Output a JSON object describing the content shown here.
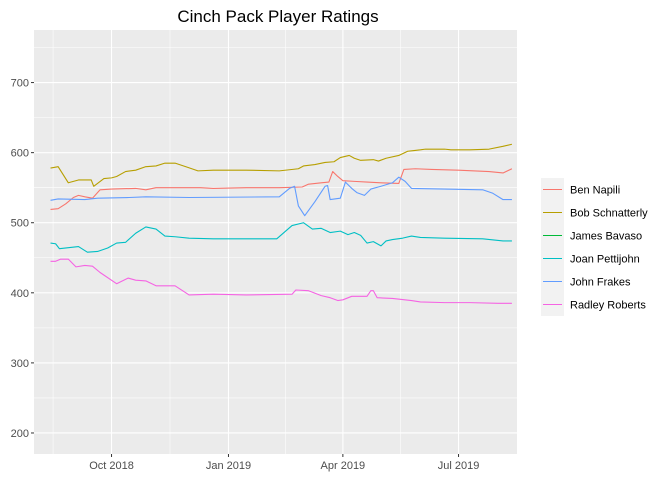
{
  "chart_data": {
    "type": "line",
    "title": "Cinch Pack Player Ratings",
    "xlabel": "",
    "ylabel": "",
    "x_domain": [
      "2018-08-01",
      "2019-08-16"
    ],
    "ylim": [
      170,
      775
    ],
    "x_ticks": [
      {
        "date": "2018-10-01",
        "label": "Oct 2018"
      },
      {
        "date": "2019-01-01",
        "label": "Jan 2019"
      },
      {
        "date": "2019-04-01",
        "label": "Apr 2019"
      },
      {
        "date": "2019-07-01",
        "label": "Jul 2019"
      }
    ],
    "y_ticks": [
      200,
      300,
      400,
      500,
      600,
      700
    ],
    "grid": true,
    "background": "#ebebeb",
    "legend_position": "right",
    "series": [
      {
        "name": "Ben Napili",
        "color": "#F8766D",
        "points": [
          [
            "2018-08-14",
            519
          ],
          [
            "2018-08-20",
            520
          ],
          [
            "2018-08-26",
            527
          ],
          [
            "2018-09-01",
            536
          ],
          [
            "2018-09-05",
            539
          ],
          [
            "2018-09-10",
            537
          ],
          [
            "2018-09-16",
            535
          ],
          [
            "2018-09-22",
            547
          ],
          [
            "2018-10-01",
            548
          ],
          [
            "2018-10-20",
            549
          ],
          [
            "2018-10-28",
            547
          ],
          [
            "2018-11-05",
            550
          ],
          [
            "2018-11-20",
            550
          ],
          [
            "2018-12-10",
            550
          ],
          [
            "2018-12-20",
            549
          ],
          [
            "2019-01-15",
            550
          ],
          [
            "2019-02-10",
            550
          ],
          [
            "2019-02-28",
            551
          ],
          [
            "2019-03-05",
            555
          ],
          [
            "2019-03-15",
            557
          ],
          [
            "2019-03-21",
            558
          ],
          [
            "2019-03-24",
            573
          ],
          [
            "2019-03-28",
            566
          ],
          [
            "2019-04-01",
            560
          ],
          [
            "2019-04-10",
            559
          ],
          [
            "2019-04-20",
            558
          ],
          [
            "2019-05-01",
            557
          ],
          [
            "2019-05-15",
            556
          ],
          [
            "2019-05-19",
            576
          ],
          [
            "2019-05-28",
            577
          ],
          [
            "2019-06-10",
            576
          ],
          [
            "2019-07-01",
            575
          ],
          [
            "2019-07-25",
            573
          ],
          [
            "2019-08-05",
            571
          ],
          [
            "2019-08-12",
            577
          ]
        ]
      },
      {
        "name": "Bob Schnatterly",
        "color": "#B79F00",
        "points": [
          [
            "2018-08-14",
            578
          ],
          [
            "2018-08-20",
            580
          ],
          [
            "2018-08-28",
            557
          ],
          [
            "2018-09-05",
            561
          ],
          [
            "2018-09-15",
            561
          ],
          [
            "2018-09-17",
            552
          ],
          [
            "2018-09-25",
            563
          ],
          [
            "2018-10-01",
            564
          ],
          [
            "2018-10-05",
            566
          ],
          [
            "2018-10-12",
            573
          ],
          [
            "2018-10-20",
            575
          ],
          [
            "2018-10-28",
            580
          ],
          [
            "2018-11-05",
            581
          ],
          [
            "2018-11-12",
            585
          ],
          [
            "2018-11-20",
            585
          ],
          [
            "2018-11-30",
            579
          ],
          [
            "2018-12-08",
            574
          ],
          [
            "2018-12-20",
            575
          ],
          [
            "2019-01-15",
            575
          ],
          [
            "2019-02-10",
            574
          ],
          [
            "2019-02-25",
            577
          ],
          [
            "2019-03-01",
            581
          ],
          [
            "2019-03-10",
            583
          ],
          [
            "2019-03-18",
            586
          ],
          [
            "2019-03-25",
            587
          ],
          [
            "2019-03-30",
            593
          ],
          [
            "2019-04-06",
            596
          ],
          [
            "2019-04-10",
            592
          ],
          [
            "2019-04-15",
            589
          ],
          [
            "2019-04-25",
            590
          ],
          [
            "2019-04-29",
            588
          ],
          [
            "2019-05-05",
            592
          ],
          [
            "2019-05-15",
            596
          ],
          [
            "2019-05-22",
            602
          ],
          [
            "2019-05-27",
            603
          ],
          [
            "2019-06-01",
            604
          ],
          [
            "2019-06-05",
            605
          ],
          [
            "2019-06-20",
            605
          ],
          [
            "2019-06-25",
            604
          ],
          [
            "2019-07-10",
            604
          ],
          [
            "2019-07-25",
            605
          ],
          [
            "2019-08-05",
            609
          ],
          [
            "2019-08-12",
            612
          ]
        ]
      },
      {
        "name": "James Bavaso",
        "color": "#00BA38",
        "points": []
      },
      {
        "name": "Joan Pettijohn",
        "color": "#00BFC4",
        "points": [
          [
            "2018-08-14",
            471
          ],
          [
            "2018-08-18",
            470
          ],
          [
            "2018-08-21",
            463
          ],
          [
            "2018-09-05",
            466
          ],
          [
            "2018-09-12",
            458
          ],
          [
            "2018-09-20",
            459
          ],
          [
            "2018-09-28",
            464
          ],
          [
            "2018-10-05",
            471
          ],
          [
            "2018-10-12",
            472
          ],
          [
            "2018-10-20",
            485
          ],
          [
            "2018-10-28",
            494
          ],
          [
            "2018-11-05",
            491
          ],
          [
            "2018-11-12",
            481
          ],
          [
            "2018-11-20",
            480
          ],
          [
            "2018-12-01",
            478
          ],
          [
            "2018-12-20",
            477
          ],
          [
            "2019-02-08",
            477
          ],
          [
            "2019-02-20",
            496
          ],
          [
            "2019-03-01",
            500
          ],
          [
            "2019-03-08",
            491
          ],
          [
            "2019-03-15",
            492
          ],
          [
            "2019-03-22",
            486
          ],
          [
            "2019-03-30",
            488
          ],
          [
            "2019-04-05",
            483
          ],
          [
            "2019-04-10",
            486
          ],
          [
            "2019-04-15",
            482
          ],
          [
            "2019-04-20",
            471
          ],
          [
            "2019-04-25",
            473
          ],
          [
            "2019-05-01",
            467
          ],
          [
            "2019-05-05",
            474
          ],
          [
            "2019-05-10",
            476
          ],
          [
            "2019-05-18",
            478
          ],
          [
            "2019-05-25",
            481
          ],
          [
            "2019-06-01",
            479
          ],
          [
            "2019-06-20",
            478
          ],
          [
            "2019-07-20",
            477
          ],
          [
            "2019-08-05",
            474
          ],
          [
            "2019-08-12",
            474
          ]
        ]
      },
      {
        "name": "John Frakes",
        "color": "#619CFF",
        "points": [
          [
            "2018-08-14",
            532
          ],
          [
            "2018-08-20",
            534
          ],
          [
            "2018-09-10",
            533
          ],
          [
            "2018-09-20",
            535
          ],
          [
            "2018-10-15",
            536
          ],
          [
            "2018-10-28",
            537
          ],
          [
            "2018-12-01",
            536
          ],
          [
            "2019-02-10",
            537
          ],
          [
            "2019-02-18",
            549
          ],
          [
            "2019-02-22",
            552
          ],
          [
            "2019-02-25",
            524
          ],
          [
            "2019-03-02",
            510
          ],
          [
            "2019-03-10",
            530
          ],
          [
            "2019-03-18",
            552
          ],
          [
            "2019-03-20",
            553
          ],
          [
            "2019-03-22",
            533
          ],
          [
            "2019-03-30",
            535
          ],
          [
            "2019-04-03",
            558
          ],
          [
            "2019-04-08",
            549
          ],
          [
            "2019-04-12",
            543
          ],
          [
            "2019-04-18",
            539
          ],
          [
            "2019-04-23",
            548
          ],
          [
            "2019-05-01",
            552
          ],
          [
            "2019-05-10",
            557
          ],
          [
            "2019-05-15",
            565
          ],
          [
            "2019-05-20",
            559
          ],
          [
            "2019-05-25",
            549
          ],
          [
            "2019-06-20",
            548
          ],
          [
            "2019-07-20",
            547
          ],
          [
            "2019-07-28",
            542
          ],
          [
            "2019-08-05",
            533
          ],
          [
            "2019-08-12",
            533
          ]
        ]
      },
      {
        "name": "Radley Roberts",
        "color": "#F564E3",
        "points": [
          [
            "2018-08-14",
            445
          ],
          [
            "2018-08-18",
            445
          ],
          [
            "2018-08-22",
            448
          ],
          [
            "2018-08-28",
            448
          ],
          [
            "2018-09-03",
            437
          ],
          [
            "2018-09-10",
            439
          ],
          [
            "2018-09-16",
            438
          ],
          [
            "2018-09-22",
            429
          ],
          [
            "2018-10-05",
            413
          ],
          [
            "2018-10-14",
            421
          ],
          [
            "2018-10-20",
            418
          ],
          [
            "2018-10-28",
            417
          ],
          [
            "2018-11-05",
            410
          ],
          [
            "2018-11-20",
            410
          ],
          [
            "2018-12-01",
            397
          ],
          [
            "2018-12-20",
            398
          ],
          [
            "2019-01-15",
            397
          ],
          [
            "2019-02-20",
            398
          ],
          [
            "2019-02-23",
            404
          ],
          [
            "2019-03-05",
            403
          ],
          [
            "2019-03-15",
            396
          ],
          [
            "2019-03-22",
            393
          ],
          [
            "2019-03-28",
            389
          ],
          [
            "2019-04-01",
            390
          ],
          [
            "2019-04-08",
            395
          ],
          [
            "2019-04-20",
            395
          ],
          [
            "2019-04-23",
            403
          ],
          [
            "2019-04-25",
            403
          ],
          [
            "2019-04-28",
            393
          ],
          [
            "2019-05-10",
            392
          ],
          [
            "2019-05-25",
            389
          ],
          [
            "2019-06-01",
            387
          ],
          [
            "2019-06-20",
            386
          ],
          [
            "2019-07-10",
            386
          ],
          [
            "2019-08-01",
            385
          ],
          [
            "2019-08-12",
            385
          ]
        ]
      }
    ]
  }
}
